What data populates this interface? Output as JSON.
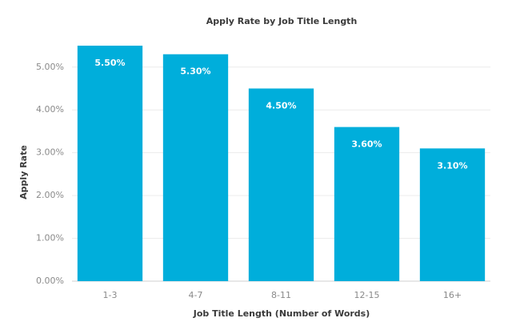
{
  "chart_data": {
    "type": "bar",
    "title": "Apply Rate by Job Title Length",
    "x_label": "Job Title Length (Number of Words)",
    "y_label": "Apply Rate",
    "categories": [
      "1-3",
      "4-7",
      "8-11",
      "12-15",
      "16+"
    ],
    "values": [
      5.5,
      5.3,
      4.5,
      3.6,
      3.1
    ],
    "value_labels": [
      "5.50%",
      "5.30%",
      "4.50%",
      "3.60%",
      "3.10%"
    ],
    "color": "#00aedb",
    "ylim": [
      0,
      5.8
    ],
    "yticks": [
      {
        "value": 0,
        "label": "0.00%"
      },
      {
        "value": 1,
        "label": "1.00%"
      },
      {
        "value": 2,
        "label": "2.00%"
      },
      {
        "value": 3,
        "label": "3.00%"
      },
      {
        "value": 4,
        "label": "4.00%"
      },
      {
        "value": 5,
        "label": "5.00%"
      }
    ],
    "grid": true
  }
}
